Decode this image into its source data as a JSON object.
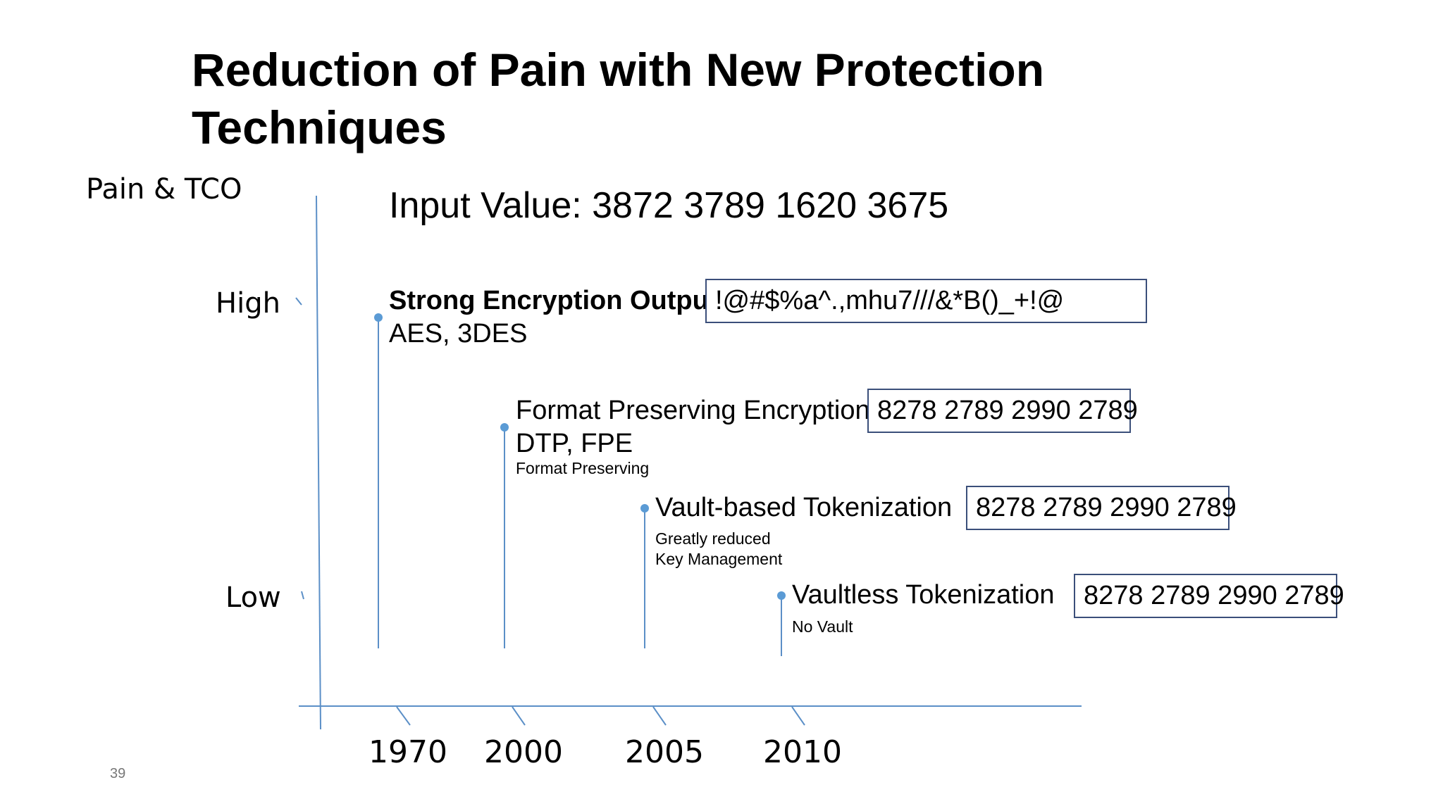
{
  "title": {
    "line1": "Reduction of Pain with New Protection",
    "line2": "Techniques"
  },
  "y_axis": {
    "label": "Pain & TCO",
    "high": "High",
    "low": "Low"
  },
  "input_value": "Input Value:  3872 3789 1620 3675",
  "methods": [
    {
      "name": "Strong Encryption Output:",
      "sub": "AES, 3DES",
      "note": "",
      "output": "!@#$%a^.,mhu7///&*B()_+!@",
      "year": "1970"
    },
    {
      "name": "Format Preserving Encryption",
      "sub": "DTP, FPE",
      "note": "Format Preserving",
      "output": "8278 2789 2990 2789",
      "year": "2000"
    },
    {
      "name": "Vault-based Tokenization",
      "sub": "",
      "note_line1": "Greatly reduced",
      "note_line2": "Key Management",
      "output": "8278 2789 2990 2789",
      "year": "2005"
    },
    {
      "name": "Vaultless Tokenization",
      "sub": "",
      "note": "No Vault",
      "output": "8278 2789 2990 2789",
      "year": "2010"
    }
  ],
  "colors": {
    "axis": "#5b8fc7",
    "marker": "#5b9bd5",
    "box_border": "#3b4f7a"
  },
  "page_number": "39"
}
